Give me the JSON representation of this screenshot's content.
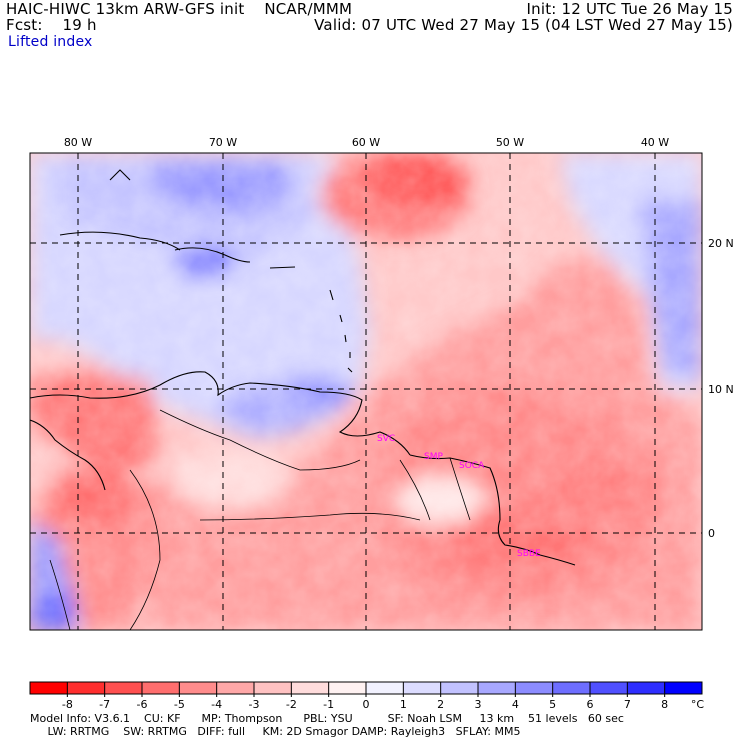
{
  "header": {
    "model_line": "HAIC-HIWC 13km ARW-GFS init    NCAR/MMM",
    "fcst_line": "Fcst:    19 h",
    "field_name": "Lifted index",
    "init_line": "Init: 12 UTC Tue 26 May 15",
    "valid_line": "Valid: 07 UTC Wed 27 May 15 (04 LST Wed 27 May 15)"
  },
  "map": {
    "lon_labels": [
      "80 W",
      "70 W",
      "60 W",
      "50 W",
      "40 W"
    ],
    "lat_labels": [
      "20 N",
      "10 N",
      "0"
    ],
    "stations": [
      "SVC",
      "SMP",
      "SOCA",
      "SBBE"
    ]
  },
  "colorbar": {
    "ticks": [
      "-8",
      "-7",
      "-6",
      "-5",
      "-4",
      "-3",
      "-2",
      "-1",
      "0",
      "1",
      "2",
      "3",
      "4",
      "5",
      "6",
      "7",
      "8"
    ],
    "unit": "°C",
    "colors": [
      "#ff0000",
      "#ff2e2e",
      "#ff5050",
      "#ff6e6e",
      "#ff8c8c",
      "#ffa8a8",
      "#ffc2c2",
      "#ffdcdc",
      "#fff2f2",
      "#f2f2ff",
      "#dcdcff",
      "#c2c2ff",
      "#a8a8ff",
      "#8c8cff",
      "#6e6eff",
      "#5050ff",
      "#2e2eff",
      "#0000ff"
    ]
  },
  "footer": {
    "line1": "Model Info: V3.6.1    CU: KF      MP: Thompson      PBL: YSU          SF: Noah LSM     13 km    51 levels   60 sec",
    "line2": "     LW: RRTMG    SW: RRTMG   DIFF: full     KM: 2D Smagor DAMP: Rayleigh3   SFLAY: MM5"
  }
}
